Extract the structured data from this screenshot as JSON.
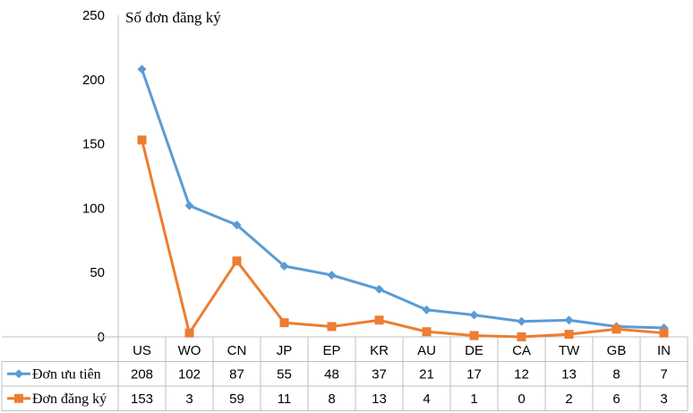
{
  "chart_data": {
    "type": "line",
    "ylabel": "Số đơn đăng ký",
    "ylim": [
      0,
      250
    ],
    "yticks": [
      0,
      50,
      100,
      150,
      200,
      250
    ],
    "categories": [
      "US",
      "WO",
      "CN",
      "JP",
      "EP",
      "KR",
      "AU",
      "DE",
      "CA",
      "TW",
      "GB",
      "IN"
    ],
    "series": [
      {
        "name": "Đơn ưu tiên",
        "values": [
          208,
          102,
          87,
          55,
          48,
          37,
          21,
          17,
          12,
          13,
          8,
          7
        ],
        "color": "#5B9BD5",
        "marker": "diamond"
      },
      {
        "name": "Đơn đăng ký",
        "values": [
          153,
          3,
          59,
          11,
          8,
          13,
          4,
          1,
          0,
          2,
          6,
          3
        ],
        "color": "#ED7D31",
        "marker": "square"
      }
    ],
    "data_table": true,
    "grid": false
  }
}
